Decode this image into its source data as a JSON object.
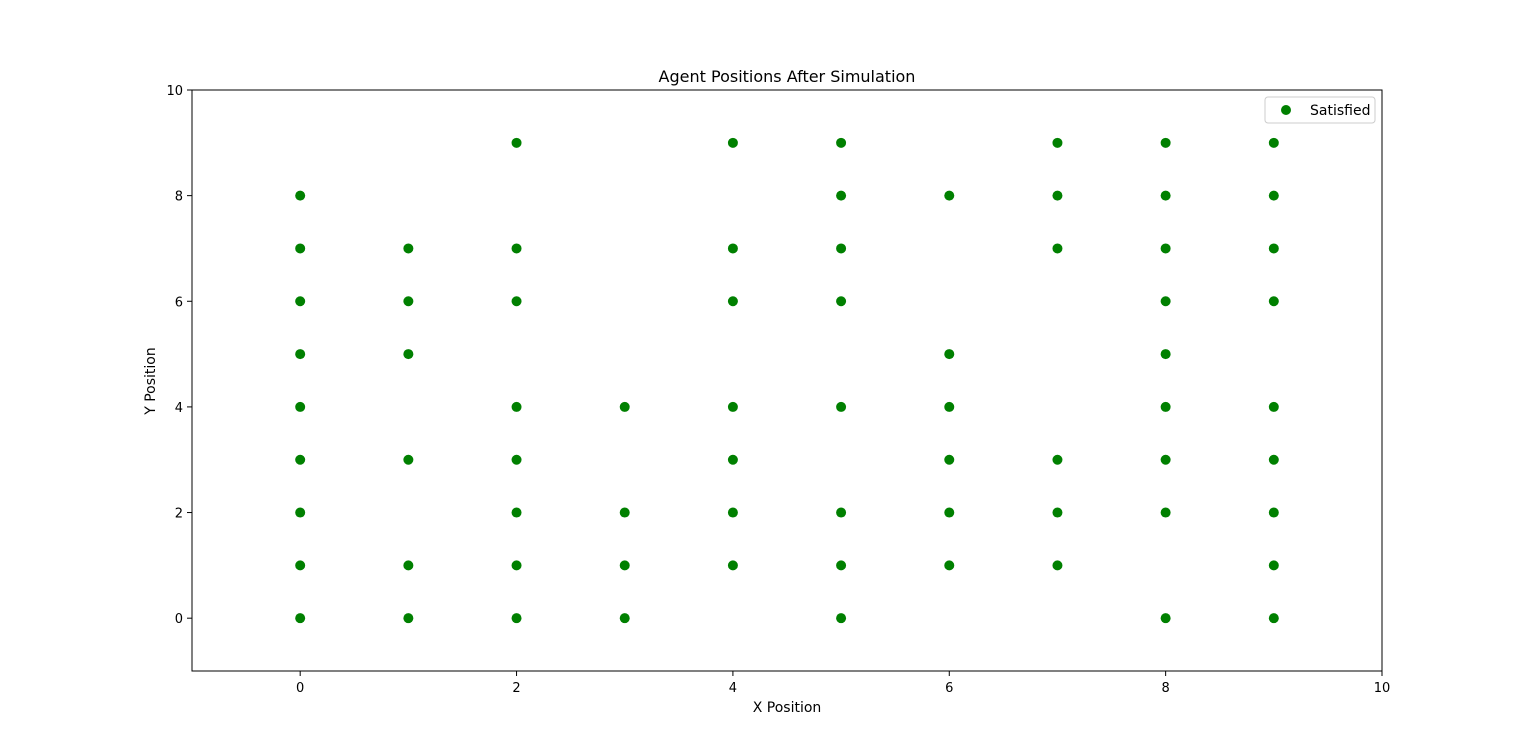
{
  "chart_data": {
    "type": "scatter",
    "title": "Agent Positions After Simulation",
    "xlabel": "X Position",
    "ylabel": "Y Position",
    "xlim": [
      -1,
      10
    ],
    "ylim": [
      -1,
      10
    ],
    "xticks": [
      "0",
      "2",
      "4",
      "6",
      "8",
      "10"
    ],
    "yticks": [
      "0",
      "2",
      "4",
      "6",
      "8",
      "10"
    ],
    "grid": false,
    "legend_position": "top-right",
    "series": [
      {
        "name": "Satisfied",
        "color": "#008000",
        "points": [
          [
            0,
            0
          ],
          [
            0,
            1
          ],
          [
            0,
            2
          ],
          [
            0,
            3
          ],
          [
            0,
            4
          ],
          [
            0,
            5
          ],
          [
            0,
            6
          ],
          [
            0,
            7
          ],
          [
            0,
            8
          ],
          [
            1,
            0
          ],
          [
            1,
            1
          ],
          [
            1,
            3
          ],
          [
            1,
            5
          ],
          [
            1,
            6
          ],
          [
            1,
            7
          ],
          [
            2,
            0
          ],
          [
            2,
            1
          ],
          [
            2,
            2
          ],
          [
            2,
            3
          ],
          [
            2,
            4
          ],
          [
            2,
            6
          ],
          [
            2,
            7
          ],
          [
            2,
            9
          ],
          [
            3,
            0
          ],
          [
            3,
            1
          ],
          [
            3,
            2
          ],
          [
            3,
            4
          ],
          [
            4,
            1
          ],
          [
            4,
            2
          ],
          [
            4,
            3
          ],
          [
            4,
            4
          ],
          [
            4,
            6
          ],
          [
            4,
            7
          ],
          [
            4,
            9
          ],
          [
            5,
            0
          ],
          [
            5,
            1
          ],
          [
            5,
            2
          ],
          [
            5,
            4
          ],
          [
            5,
            6
          ],
          [
            5,
            7
          ],
          [
            5,
            8
          ],
          [
            5,
            9
          ],
          [
            6,
            1
          ],
          [
            6,
            2
          ],
          [
            6,
            3
          ],
          [
            6,
            4
          ],
          [
            6,
            5
          ],
          [
            6,
            8
          ],
          [
            7,
            1
          ],
          [
            7,
            2
          ],
          [
            7,
            3
          ],
          [
            7,
            7
          ],
          [
            7,
            8
          ],
          [
            7,
            9
          ],
          [
            8,
            0
          ],
          [
            8,
            2
          ],
          [
            8,
            3
          ],
          [
            8,
            4
          ],
          [
            8,
            5
          ],
          [
            8,
            6
          ],
          [
            8,
            7
          ],
          [
            8,
            8
          ],
          [
            8,
            9
          ],
          [
            9,
            0
          ],
          [
            9,
            1
          ],
          [
            9,
            2
          ],
          [
            9,
            3
          ],
          [
            9,
            4
          ],
          [
            9,
            6
          ],
          [
            9,
            7
          ],
          [
            9,
            8
          ],
          [
            9,
            9
          ]
        ]
      }
    ]
  }
}
